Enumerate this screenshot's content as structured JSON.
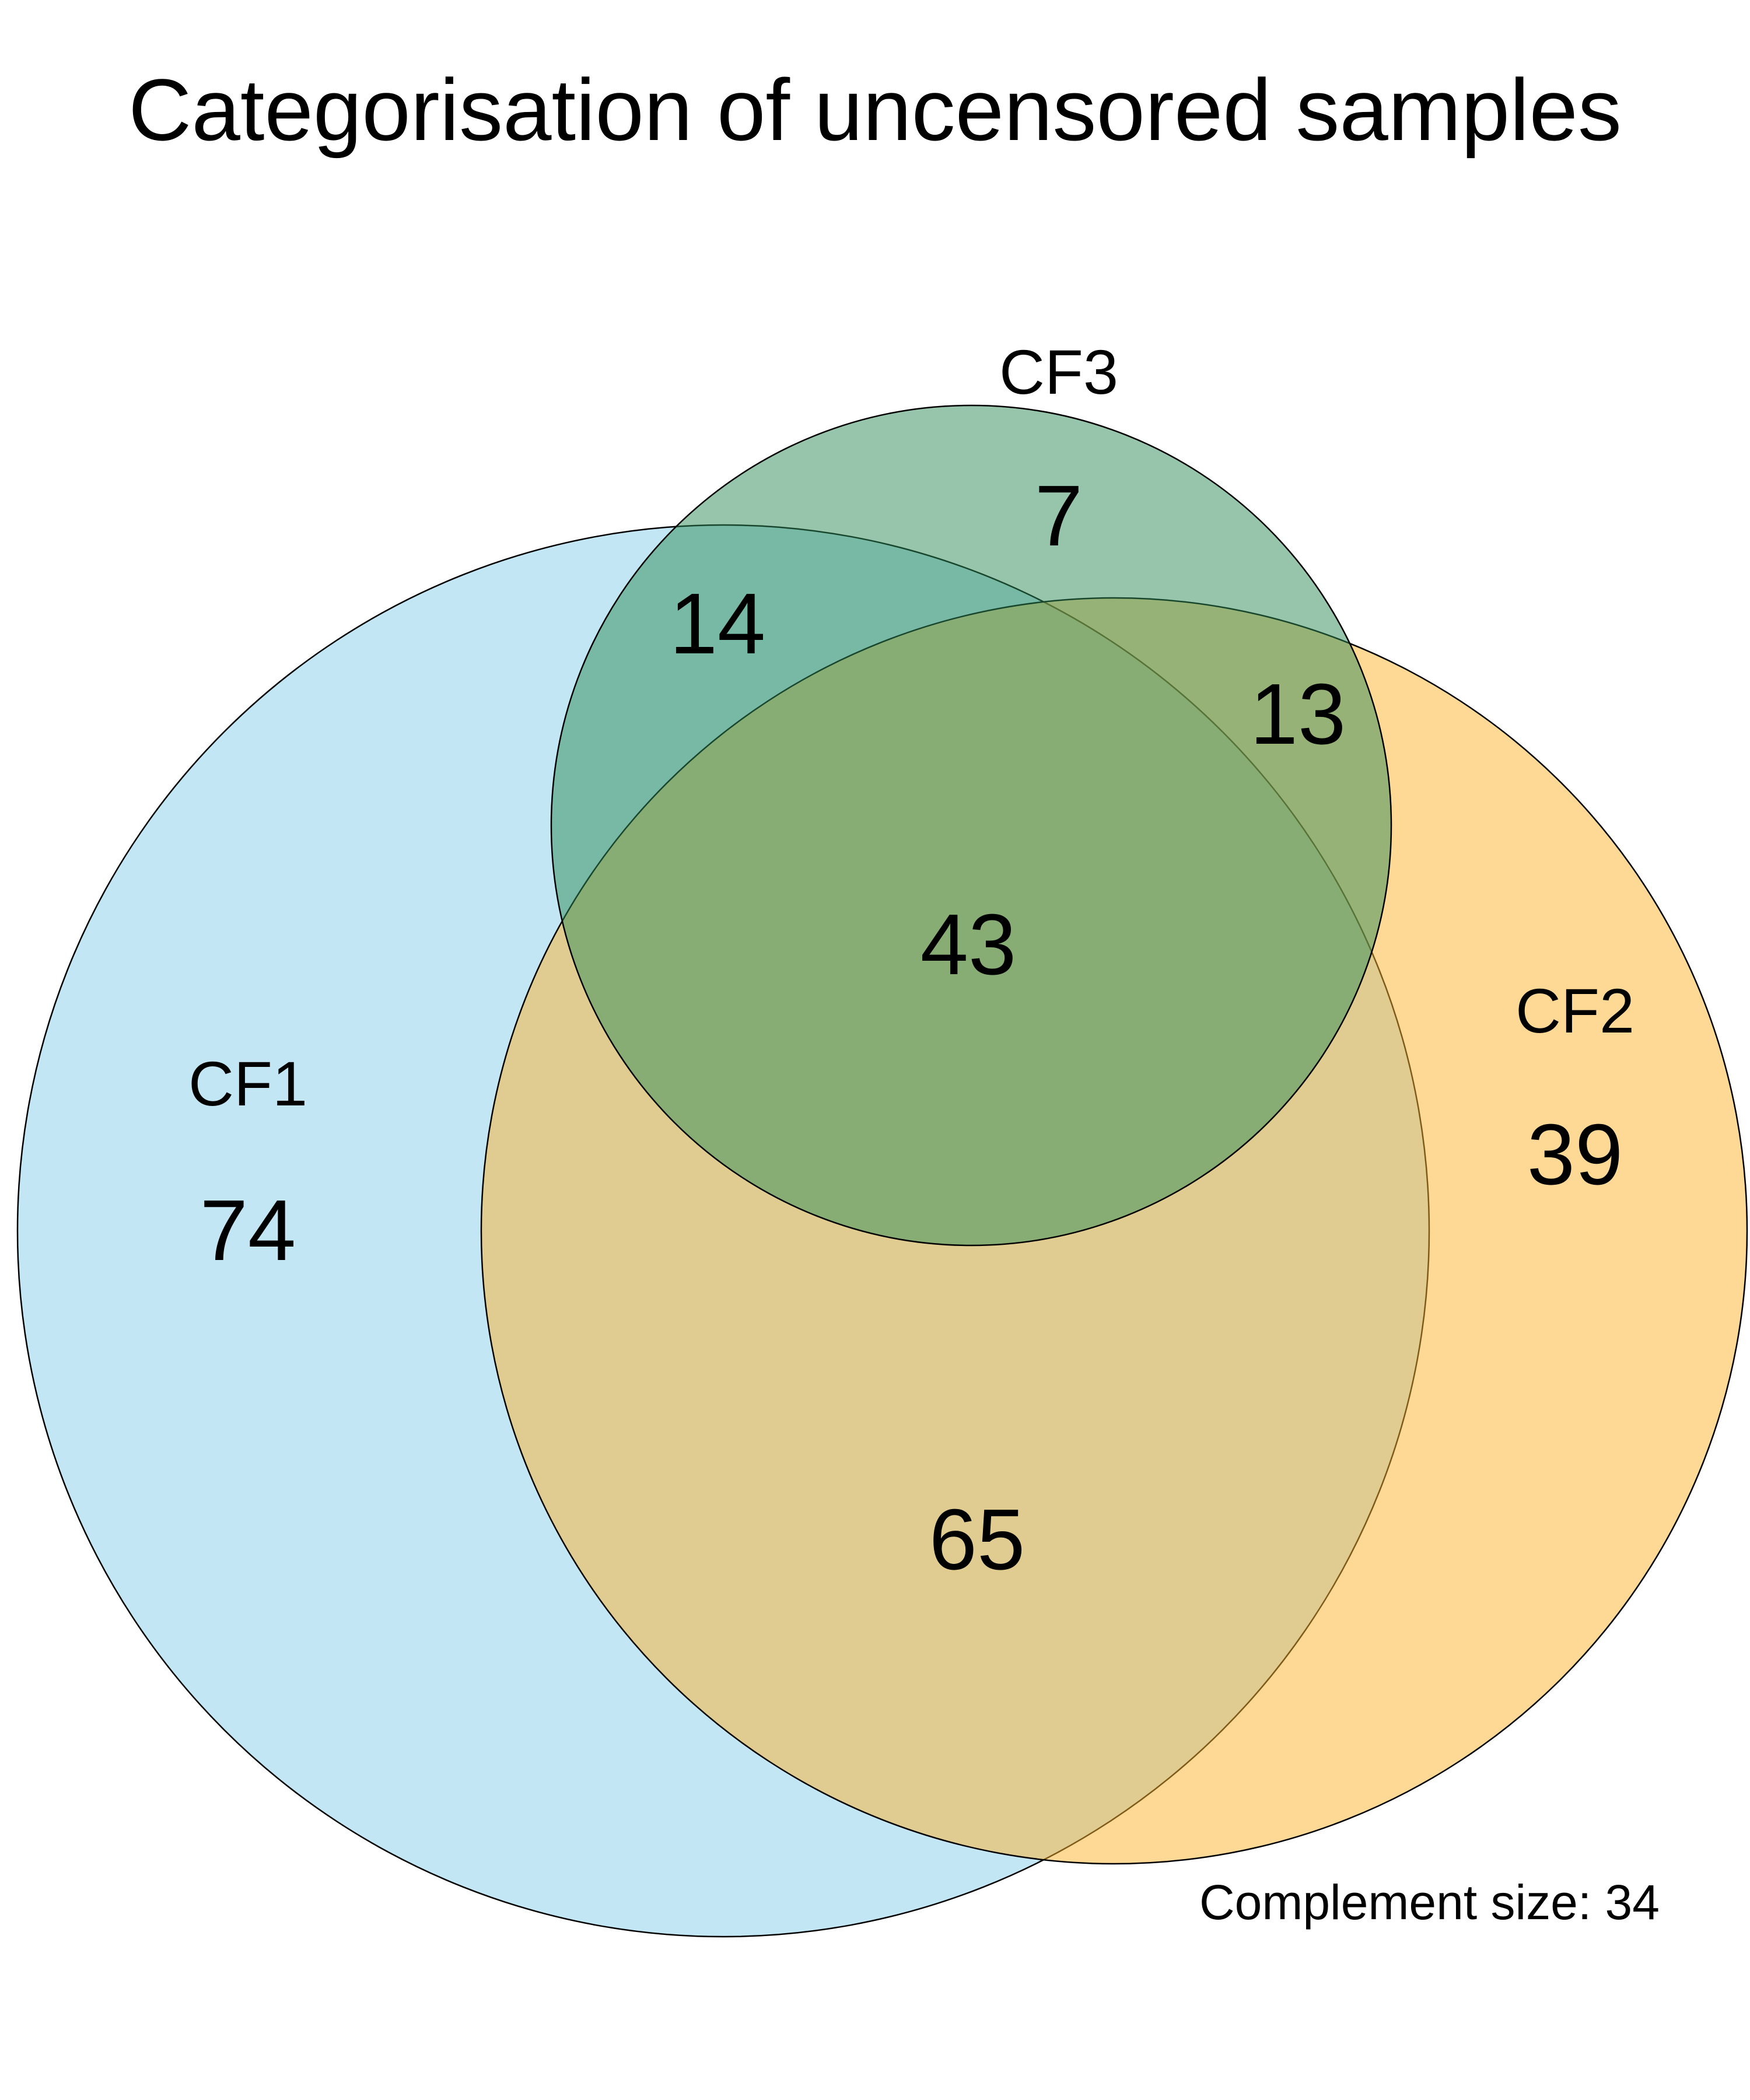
{
  "title": "Categorisation of uncensored samples",
  "sets": [
    {
      "id": "cf1",
      "label": "CF1",
      "color": "#87CEEB"
    },
    {
      "id": "cf2",
      "label": "CF2",
      "color": "#FDB22B"
    },
    {
      "id": "cf3",
      "label": "CF3",
      "color": "#2E8B57"
    }
  ],
  "regions": {
    "cf1_only": "74",
    "cf2_only": "39",
    "cf3_only": "7",
    "cf1_cf3": "14",
    "cf2_cf3": "13",
    "cf1_cf2": "65",
    "cf1_cf2_cf3": "43"
  },
  "complement": "Complement size: 34",
  "colors": {
    "background": "#FFFFFF",
    "outline": "#000000"
  },
  "fill_opacity": 0.5
}
